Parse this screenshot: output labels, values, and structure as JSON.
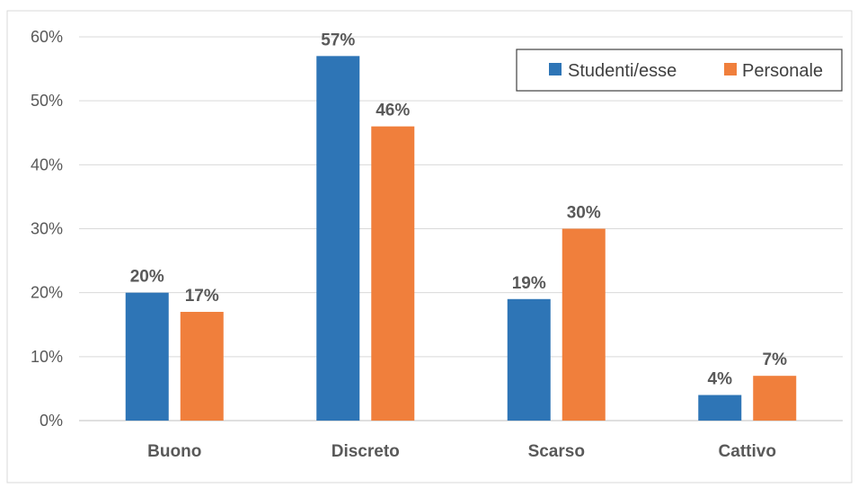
{
  "chart_data": {
    "type": "bar",
    "categories": [
      "Buono",
      "Discreto",
      "Scarso",
      "Cattivo"
    ],
    "series": [
      {
        "name": "Studenti/esse",
        "values": [
          20,
          57,
          19,
          4
        ],
        "color": "#2E75B6"
      },
      {
        "name": "Personale",
        "values": [
          17,
          46,
          30,
          7
        ],
        "color": "#F07F3C"
      }
    ],
    "data_labels": [
      [
        "20%",
        "57%",
        "19%",
        "4%"
      ],
      [
        "17%",
        "46%",
        "30%",
        "7%"
      ]
    ],
    "yticks": [
      "0%",
      "10%",
      "20%",
      "30%",
      "40%",
      "50%",
      "60%"
    ],
    "ylim": [
      0,
      60
    ],
    "grid": true,
    "legend_position": "top-right",
    "title": "",
    "xlabel": "",
    "ylabel": ""
  }
}
